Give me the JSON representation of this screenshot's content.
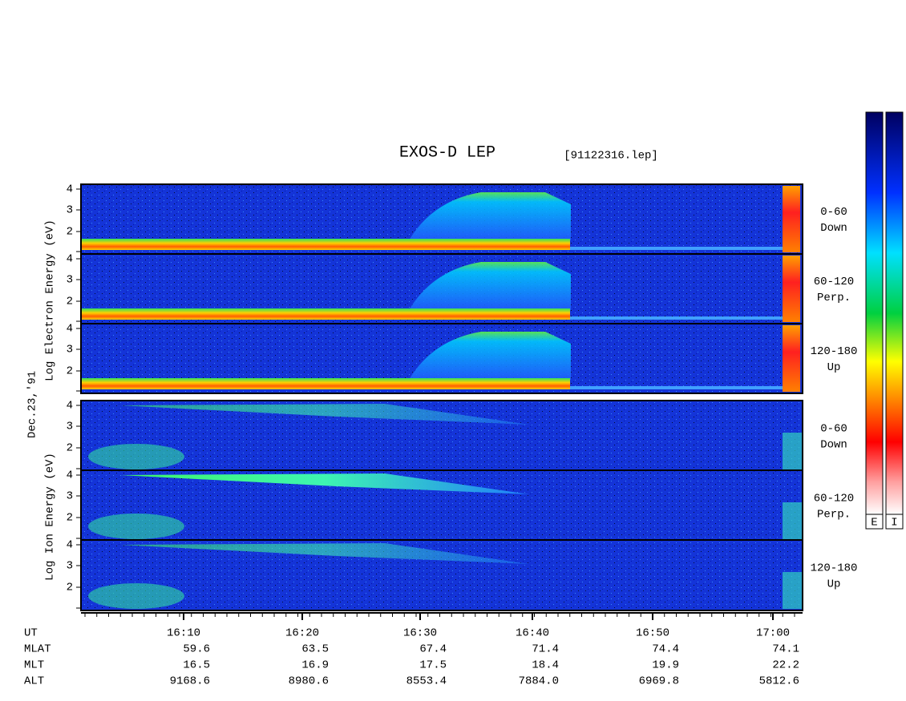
{
  "header": {
    "title": "EXOS-D LEP",
    "file": "[91122316.lep]"
  },
  "date": "Dec.23,'91",
  "electron": {
    "axis_label": "Log Electron Energy (eV)",
    "panels": [
      {
        "yticks": [
          "4",
          "3",
          "2"
        ],
        "pitch": "0-60",
        "direction": "Down"
      },
      {
        "yticks": [
          "4",
          "3",
          "2"
        ],
        "pitch": "60-120",
        "direction": "Perp."
      },
      {
        "yticks": [
          "4",
          "3",
          "2"
        ],
        "pitch": "120-180",
        "direction": "Up"
      }
    ]
  },
  "ion": {
    "axis_label": "Log Ion Energy (eV)",
    "panels": [
      {
        "yticks": [
          "4",
          "3",
          "2"
        ],
        "pitch": "0-60",
        "direction": "Down"
      },
      {
        "yticks": [
          "4",
          "3",
          "2"
        ],
        "pitch": "60-120",
        "direction": "Perp."
      },
      {
        "yticks": [
          "4",
          "3",
          "2"
        ],
        "pitch": "120-180",
        "direction": "Up"
      }
    ]
  },
  "x_axis": {
    "rows": [
      {
        "label": "UT",
        "values": [
          "16:10",
          "16:20",
          "16:30",
          "16:40",
          "16:50",
          "17:00"
        ]
      },
      {
        "label": "MLAT",
        "values": [
          "59.6",
          "63.5",
          "67.4",
          "71.4",
          "74.4",
          "74.1"
        ]
      },
      {
        "label": "MLT",
        "values": [
          "16.5",
          "16.9",
          "17.5",
          "18.4",
          "19.9",
          "22.2"
        ]
      },
      {
        "label": "ALT",
        "values": [
          "9168.6",
          "8980.6",
          "8553.4",
          "7884.0",
          "6969.8",
          "5812.6"
        ]
      }
    ]
  },
  "colorbars": [
    "E",
    "I"
  ]
}
